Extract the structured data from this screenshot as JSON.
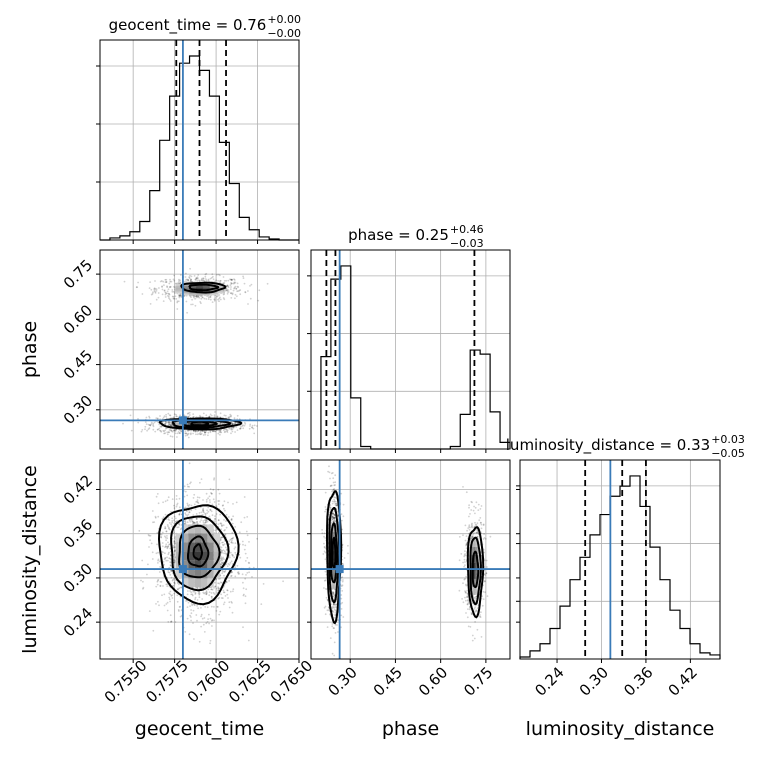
{
  "chart_data": {
    "type": "corner",
    "parameters": [
      "geocent_time",
      "phase",
      "luminosity_distance"
    ],
    "truth_color": "#3a7bb8",
    "truths": {
      "geocent_time": 0.758,
      "phase": 0.265,
      "luminosity_distance": 0.312
    },
    "titles": [
      {
        "param": "geocent_time",
        "text": "geocent_time = 0.76",
        "sup": "+0.00",
        "sub": "−0.00"
      },
      {
        "param": "phase",
        "text": "phase = 0.25",
        "sup": "+0.46",
        "sub": "−0.03"
      },
      {
        "param": "luminosity_distance",
        "text": "luminosity_distance = 0.33",
        "sup": "+0.03",
        "sub": "−0.05"
      }
    ],
    "axes": {
      "geocent_time": {
        "range": [
          0.753,
          0.765
        ],
        "ticks": [
          "0.7550",
          "0.7575",
          "0.7600",
          "0.7625",
          "0.7650"
        ],
        "tick_values": [
          0.755,
          0.7575,
          0.76,
          0.7625,
          0.765
        ],
        "label": "geocent_time"
      },
      "phase": {
        "range": [
          0.17,
          0.83
        ],
        "ticks": [
          "0.30",
          "0.45",
          "0.60",
          "0.75"
        ],
        "tick_values": [
          0.3,
          0.45,
          0.6,
          0.75
        ],
        "label": "phase"
      },
      "luminosity_distance": {
        "range": [
          0.19,
          0.46
        ],
        "ticks": [
          "0.24",
          "0.30",
          "0.36",
          "0.42"
        ],
        "tick_values": [
          0.24,
          0.3,
          0.36,
          0.42
        ],
        "label": "luminosity_distance"
      }
    },
    "histograms": {
      "geocent_time": {
        "bins": [
          0.753,
          0.7536,
          0.7542,
          0.7548,
          0.7554,
          0.756,
          0.7566,
          0.7572,
          0.7578,
          0.7584,
          0.759,
          0.7596,
          0.7602,
          0.7608,
          0.7614,
          0.762,
          0.7626,
          0.7632,
          0.7638,
          0.7644,
          0.765
        ],
        "counts": [
          0,
          2,
          4,
          8,
          18,
          48,
          97,
          140,
          172,
          179,
          165,
          140,
          95,
          55,
          22,
          10,
          3,
          1,
          0,
          0
        ],
        "quantiles": [
          0.7576,
          0.759,
          0.7606
        ]
      },
      "phase": {
        "bins": [
          0.17,
          0.203,
          0.236,
          0.269,
          0.302,
          0.335,
          0.368,
          0.401,
          0.434,
          0.467,
          0.5,
          0.533,
          0.566,
          0.599,
          0.632,
          0.665,
          0.698,
          0.731,
          0.764,
          0.797,
          0.83
        ],
        "counts": [
          0,
          112,
          206,
          222,
          62,
          3,
          0,
          0,
          0,
          0,
          0,
          0,
          0,
          0,
          3,
          42,
          120,
          115,
          45,
          8
        ],
        "quantiles": [
          0.221,
          0.251,
          0.712
        ]
      },
      "luminosity_distance": {
        "bins": [
          0.19,
          0.2035,
          0.217,
          0.2305,
          0.244,
          0.2575,
          0.271,
          0.2845,
          0.298,
          0.3115,
          0.325,
          0.3385,
          0.352,
          0.3655,
          0.379,
          0.3925,
          0.406,
          0.4195,
          0.433,
          0.4465,
          0.46
        ],
        "counts": [
          2,
          8,
          15,
          30,
          52,
          78,
          100,
          122,
          142,
          160,
          170,
          180,
          150,
          110,
          78,
          48,
          30,
          15,
          6,
          4
        ],
        "quantiles": [
          0.278,
          0.328,
          0.36
        ]
      }
    },
    "scatter_blobs": [
      {
        "xparam": "geocent_time",
        "yparam": "phase",
        "cx": 0.759,
        "cy": 0.702,
        "sx": 0.0013,
        "sy": 0.02,
        "n": 700
      },
      {
        "xparam": "geocent_time",
        "yparam": "phase",
        "cx": 0.7589,
        "cy": 0.252,
        "sx": 0.0012,
        "sy": 0.014,
        "n": 1300
      },
      {
        "xparam": "geocent_time",
        "yparam": "luminosity_distance",
        "cx": 0.7589,
        "cy": 0.33,
        "sx": 0.0012,
        "sy": 0.038,
        "n": 1800
      },
      {
        "xparam": "phase",
        "yparam": "luminosity_distance",
        "cx": 0.246,
        "cy": 0.33,
        "sx": 0.013,
        "sy": 0.04,
        "n": 1200
      },
      {
        "xparam": "phase",
        "yparam": "luminosity_distance",
        "cx": 0.712,
        "cy": 0.315,
        "sx": 0.016,
        "sy": 0.034,
        "n": 700
      }
    ],
    "contours": [
      {
        "xparam": "geocent_time",
        "yparam": "phase",
        "cx": 0.7592,
        "cy": 0.706,
        "levels": [
          [
            0.0013,
            0.016
          ],
          [
            0.00085,
            0.009
          ]
        ]
      },
      {
        "xparam": "geocent_time",
        "yparam": "phase",
        "cx": 0.759,
        "cy": 0.254,
        "levels": [
          [
            0.0024,
            0.018
          ],
          [
            0.0017,
            0.013
          ],
          [
            0.00095,
            0.009
          ],
          [
            0.0005,
            0.006
          ]
        ]
      },
      {
        "xparam": "geocent_time",
        "yparam": "luminosity_distance",
        "cx": 0.7589,
        "cy": 0.335,
        "levels": [
          [
            0.00235,
            0.066
          ],
          [
            0.0017,
            0.05
          ],
          [
            0.0012,
            0.035
          ],
          [
            0.0006,
            0.02
          ],
          [
            0.00025,
            0.01
          ]
        ]
      },
      {
        "xparam": "phase",
        "yparam": "luminosity_distance",
        "cx": 0.246,
        "cy": 0.333,
        "levels": [
          [
            0.023,
            0.088
          ],
          [
            0.016,
            0.064
          ],
          [
            0.01,
            0.04
          ],
          [
            0.005,
            0.02
          ]
        ]
      },
      {
        "xparam": "phase",
        "yparam": "luminosity_distance",
        "cx": 0.715,
        "cy": 0.311,
        "levels": [
          [
            0.025,
            0.06
          ],
          [
            0.017,
            0.045
          ],
          [
            0.009,
            0.024
          ]
        ]
      }
    ],
    "grid": true
  }
}
